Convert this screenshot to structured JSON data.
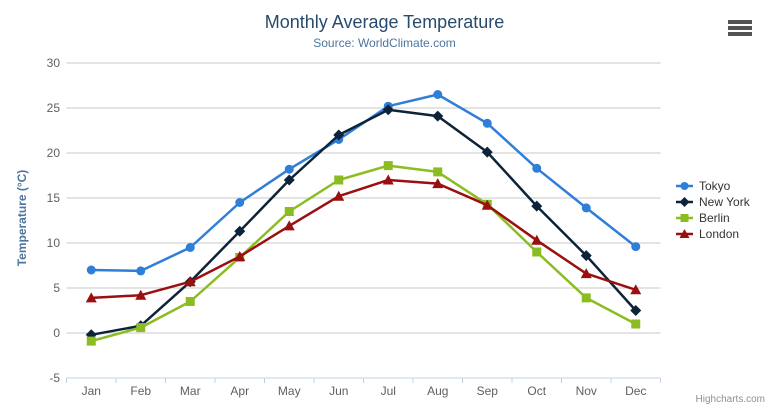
{
  "chart_data": {
    "type": "line",
    "title": "Monthly Average Temperature",
    "subtitle": "Source: WorldClimate.com",
    "categories": [
      "Jan",
      "Feb",
      "Mar",
      "Apr",
      "May",
      "Jun",
      "Jul",
      "Aug",
      "Sep",
      "Oct",
      "Nov",
      "Dec"
    ],
    "xlabel": "",
    "ylabel": "Temperature (°C)",
    "ylim": [
      -5,
      30
    ],
    "ytick_step": 5,
    "grid": true,
    "legend_position": "right",
    "series": [
      {
        "name": "Tokyo",
        "color": "#2f7ed8",
        "marker": "circle",
        "values": [
          7.0,
          6.9,
          9.5,
          14.5,
          18.2,
          21.5,
          25.2,
          26.5,
          23.3,
          18.3,
          13.9,
          9.6
        ]
      },
      {
        "name": "New York",
        "color": "#0d233a",
        "marker": "diamond",
        "values": [
          -0.2,
          0.8,
          5.7,
          11.3,
          17.0,
          22.0,
          24.8,
          24.1,
          20.1,
          14.1,
          8.6,
          2.5
        ]
      },
      {
        "name": "Berlin",
        "color": "#8bbc21",
        "marker": "square",
        "values": [
          -0.9,
          0.6,
          3.5,
          8.4,
          13.5,
          17.0,
          18.6,
          17.9,
          14.3,
          9.0,
          3.9,
          1.0
        ]
      },
      {
        "name": "London",
        "color": "#9a0f0f",
        "marker": "triangle",
        "values": [
          3.9,
          4.2,
          5.7,
          8.5,
          11.9,
          15.2,
          17.0,
          16.6,
          14.2,
          10.3,
          6.6,
          4.8
        ]
      }
    ]
  },
  "toolbar": {
    "menu_icon": "hamburger-icon",
    "menu_tooltip": "Chart context menu"
  },
  "credits": {
    "label": "Highcharts.com"
  },
  "styles": {
    "title_color": "#274b6d",
    "subtitle_color": "#4d759e",
    "axis_label_color": "#606060",
    "axis_title_color": "#4d759e",
    "grid_color": "#c8c8c8",
    "axis_line_color": "#c0d0e0",
    "legend_text_color": "#333333",
    "credits_color": "#909090"
  }
}
